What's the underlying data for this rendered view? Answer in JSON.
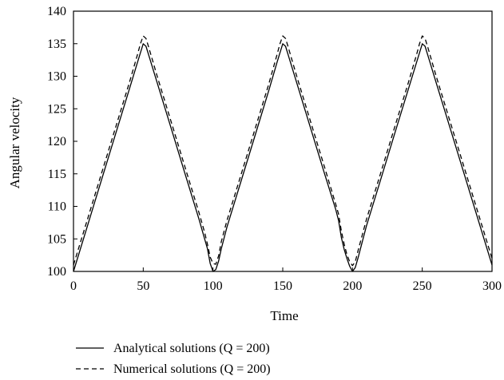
{
  "chart_data": {
    "type": "line",
    "title": "",
    "xlabel": "Time",
    "ylabel": "Angular velocity",
    "xlim": [
      0,
      300
    ],
    "ylim": [
      100,
      140
    ],
    "x_ticks": [
      0,
      50,
      100,
      150,
      200,
      250,
      300
    ],
    "y_ticks": [
      100,
      105,
      110,
      115,
      120,
      125,
      130,
      135,
      140
    ],
    "grid": false,
    "legend": "bottom-left",
    "series": [
      {
        "name": "Analytical solutions (Q = 200)",
        "style": "solid",
        "x": [
          0,
          10,
          20,
          30,
          40,
          46,
          48,
          50,
          52,
          54,
          60,
          70,
          80,
          90,
          94,
          96,
          98,
          100,
          102,
          104,
          106,
          110,
          120,
          130,
          140,
          146,
          148,
          150,
          152,
          154,
          160,
          170,
          180,
          188,
          190,
          192,
          194,
          196,
          198,
          200,
          202,
          204,
          210,
          220,
          230,
          240,
          246,
          248,
          250,
          252,
          254,
          260,
          270,
          280,
          290,
          300
        ],
        "y": [
          100,
          107,
          114,
          121,
          128,
          132.2,
          133.6,
          135,
          134.6,
          133.2,
          129,
          122,
          115,
          108,
          105,
          103.5,
          101.2,
          100,
          100.3,
          101.6,
          103.5,
          106.8,
          113.8,
          120.8,
          127.8,
          132.2,
          133.6,
          135,
          134.6,
          133.2,
          129,
          122,
          115,
          109.5,
          107.8,
          105.2,
          103.4,
          102,
          100.8,
          100,
          100.6,
          102.1,
          107,
          114,
          121,
          128,
          132.2,
          133.6,
          135,
          134.6,
          133.2,
          129,
          122,
          115,
          108,
          101
        ]
      },
      {
        "name": "Numerical solutions (Q = 200)",
        "style": "dashed",
        "x": [
          0,
          10,
          20,
          30,
          40,
          46,
          48,
          50,
          52,
          54,
          60,
          70,
          80,
          90,
          94,
          96,
          98,
          100,
          102,
          104,
          106,
          110,
          120,
          130,
          140,
          146,
          148,
          150,
          152,
          154,
          160,
          170,
          180,
          188,
          190,
          192,
          194,
          196,
          198,
          200,
          202,
          204,
          210,
          220,
          230,
          240,
          246,
          248,
          250,
          252,
          254,
          260,
          270,
          280,
          290,
          300
        ],
        "y": [
          101,
          108,
          115,
          122,
          129,
          133.4,
          135,
          136.2,
          135.8,
          134.4,
          130,
          123,
          116,
          109,
          106,
          104.2,
          102.2,
          101.2,
          101.1,
          102.4,
          104.6,
          107.8,
          114.8,
          121.8,
          128.8,
          133.4,
          135,
          136.2,
          135.8,
          134.4,
          130,
          123,
          116,
          110.3,
          108.8,
          106.2,
          104.2,
          102.6,
          101.5,
          100.9,
          101.5,
          103.2,
          108,
          115,
          122,
          129,
          133.4,
          135,
          136.2,
          135.8,
          134.4,
          130,
          123,
          116,
          109,
          102
        ]
      }
    ]
  }
}
